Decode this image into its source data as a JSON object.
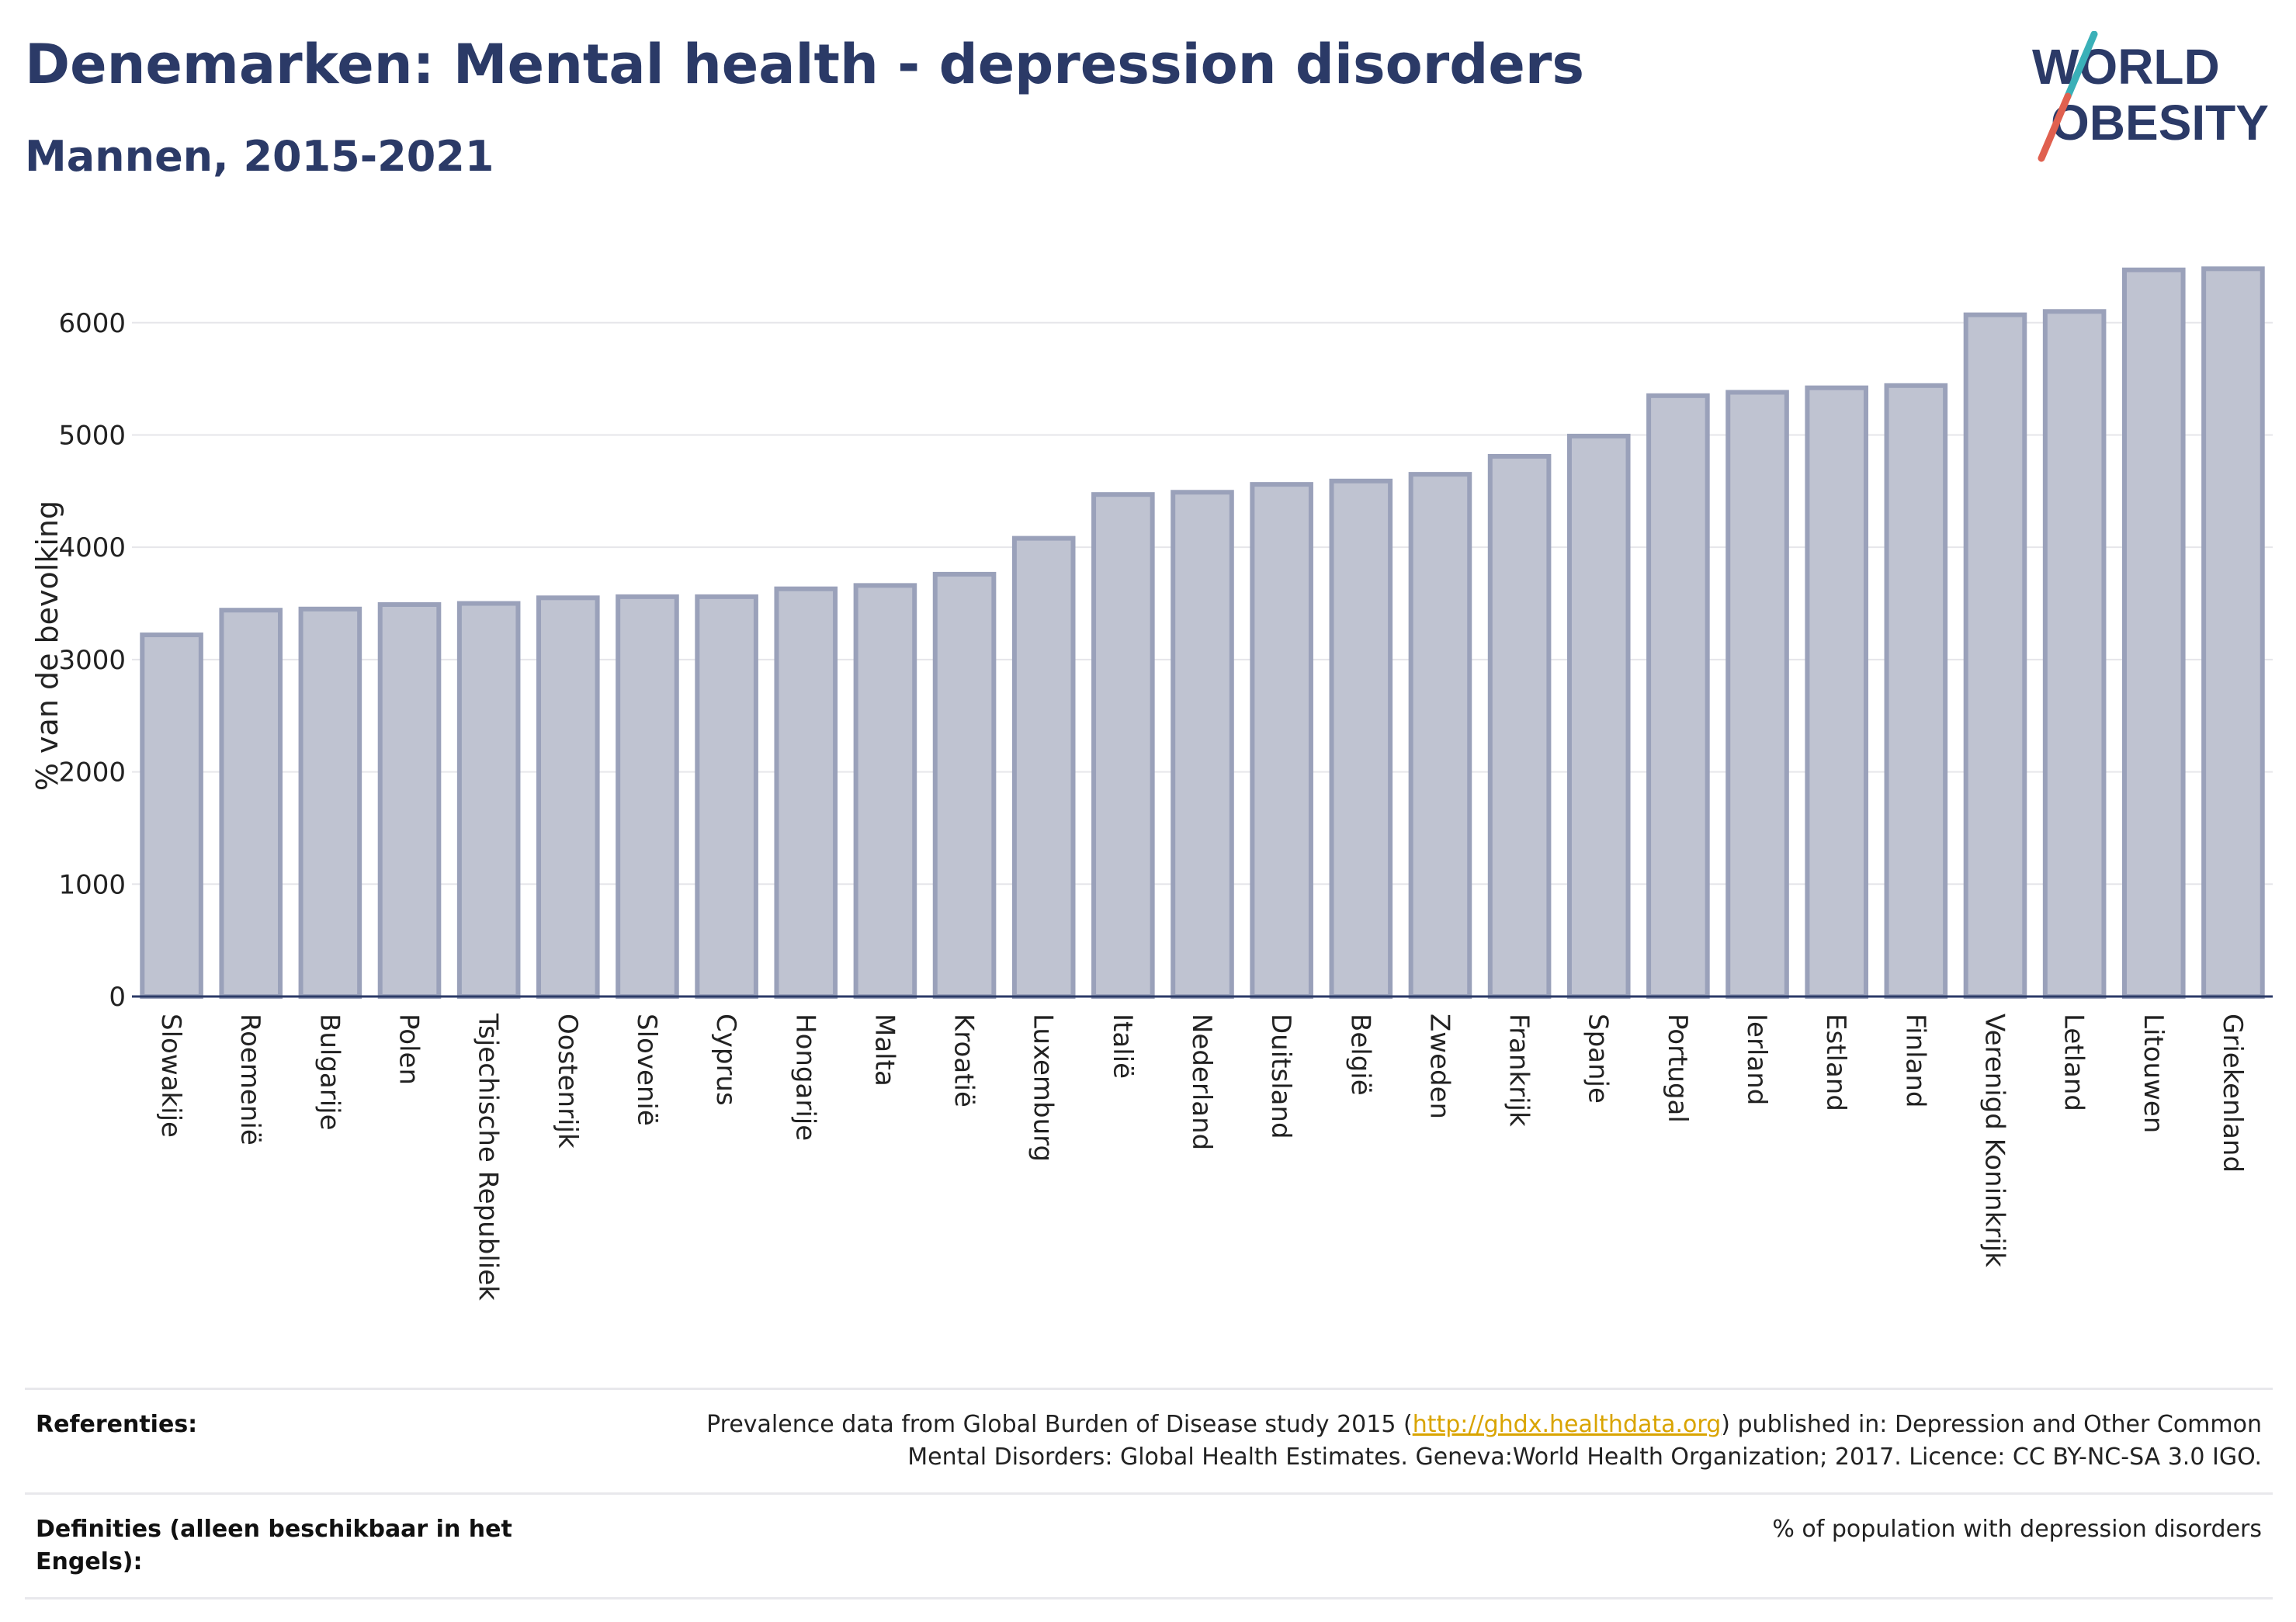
{
  "header": {
    "title": "Denemarken: Mental health - depression disorders",
    "subtitle": "Mannen, 2015-2021",
    "logo_text_line1": "WORLD",
    "logo_text_line2": "OBESITY"
  },
  "colors": {
    "title": "#2b3a67",
    "bar_fill": "#bfc3d1",
    "bar_stroke": "#9aa1ba",
    "logo_slash_teal": "#3ab0b8",
    "logo_slash_red": "#e0604f",
    "link": "#d9a400"
  },
  "chart_data": {
    "type": "bar",
    "ylabel": "% van de bevolking",
    "ylim": [
      0,
      6800
    ],
    "yticks": [
      "0",
      "1000",
      "2000",
      "3000",
      "4000",
      "5000",
      "6000"
    ],
    "ytick_values": [
      0,
      1000,
      2000,
      3000,
      4000,
      5000,
      6000
    ],
    "grid": true,
    "categories": [
      "Slowakije",
      "Roemenië",
      "Bulgarije",
      "Polen",
      "Tsjechische Republiek",
      "Oostenrijk",
      "Slovenië",
      "Cyprus",
      "Hongarije",
      "Malta",
      "Kroatië",
      "Luxemburg",
      "Italië",
      "Nederland",
      "Duitsland",
      "België",
      "Zweden",
      "Frankrijk",
      "Spanje",
      "Portugal",
      "Ierland",
      "Estland",
      "Finland",
      "Verenigd Koninkrijk",
      "Letland",
      "Litouwen",
      "Griekenland"
    ],
    "values": [
      3220,
      3440,
      3450,
      3490,
      3500,
      3550,
      3560,
      3560,
      3630,
      3660,
      3760,
      4080,
      4470,
      4490,
      4560,
      4590,
      4650,
      4810,
      4990,
      5350,
      5380,
      5420,
      5440,
      6070,
      6100,
      6470,
      6480
    ]
  },
  "references": {
    "ref_label": "Referenties:",
    "ref_text_before": "Prevalence data from Global Burden of Disease study 2015 (",
    "ref_link": "http://ghdx.healthdata.org",
    "ref_text_after": ") published in: Depression and Other Common Mental Disorders: Global Health Estimates. Geneva:World Health Organization; 2017. Licence: CC BY-NC-SA 3.0 IGO.",
    "def_label": "Definities (alleen beschikbaar in het Engels):",
    "def_text": "% of population with depression disorders"
  }
}
